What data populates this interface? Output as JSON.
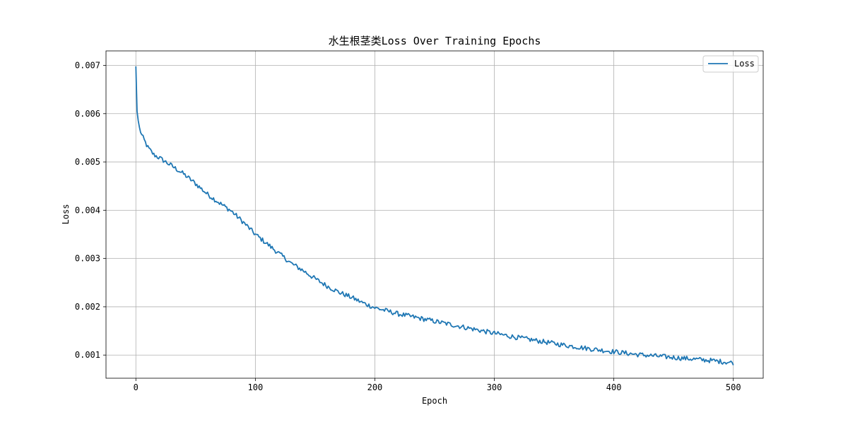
{
  "chart_data": {
    "type": "line",
    "title": "水生根茎类Loss Over Training Epochs",
    "xlabel": "Epoch",
    "ylabel": "Loss",
    "xlim": [
      -25,
      525
    ],
    "ylim": [
      0.00052,
      0.0073
    ],
    "xticks": [
      0,
      100,
      200,
      300,
      400,
      500
    ],
    "yticks": [
      0.001,
      0.002,
      0.003,
      0.004,
      0.005,
      0.006,
      0.007
    ],
    "xtick_labels": [
      "0",
      "100",
      "200",
      "300",
      "400",
      "500"
    ],
    "ytick_labels": [
      "0.001",
      "0.002",
      "0.003",
      "0.004",
      "0.005",
      "0.006",
      "0.007"
    ],
    "grid": true,
    "legend": {
      "position": "top-right",
      "entries": [
        "Loss"
      ]
    },
    "colors": {
      "series": "#1f77b4",
      "grid": "#b0b0b0",
      "axes": "#000000"
    },
    "series": [
      {
        "name": "Loss",
        "x_start": 0,
        "x_step": 1,
        "noise": 5e-05,
        "keypoints": [
          [
            0,
            0.00698
          ],
          [
            1,
            0.00605
          ],
          [
            2,
            0.00585
          ],
          [
            3,
            0.0057
          ],
          [
            5,
            0.00555
          ],
          [
            8,
            0.0054
          ],
          [
            10,
            0.0053
          ],
          [
            15,
            0.00515
          ],
          [
            20,
            0.00508
          ],
          [
            30,
            0.00492
          ],
          [
            40,
            0.00475
          ],
          [
            50,
            0.00455
          ],
          [
            60,
            0.00433
          ],
          [
            70,
            0.00415
          ],
          [
            80,
            0.00398
          ],
          [
            90,
            0.00375
          ],
          [
            100,
            0.0035
          ],
          [
            110,
            0.0033
          ],
          [
            120,
            0.0031
          ],
          [
            130,
            0.0029
          ],
          [
            140,
            0.00275
          ],
          [
            150,
            0.00258
          ],
          [
            160,
            0.00243
          ],
          [
            170,
            0.0023
          ],
          [
            180,
            0.0022
          ],
          [
            190,
            0.00208
          ],
          [
            200,
            0.00198
          ],
          [
            220,
            0.00185
          ],
          [
            240,
            0.00175
          ],
          [
            260,
            0.00165
          ],
          [
            280,
            0.00155
          ],
          [
            300,
            0.00145
          ],
          [
            320,
            0.00136
          ],
          [
            340,
            0.00128
          ],
          [
            360,
            0.0012
          ],
          [
            380,
            0.00113
          ],
          [
            400,
            0.00107
          ],
          [
            420,
            0.00101
          ],
          [
            440,
            0.00097
          ],
          [
            460,
            0.00093
          ],
          [
            480,
            0.00089
          ],
          [
            500,
            0.00084
          ]
        ]
      }
    ]
  }
}
